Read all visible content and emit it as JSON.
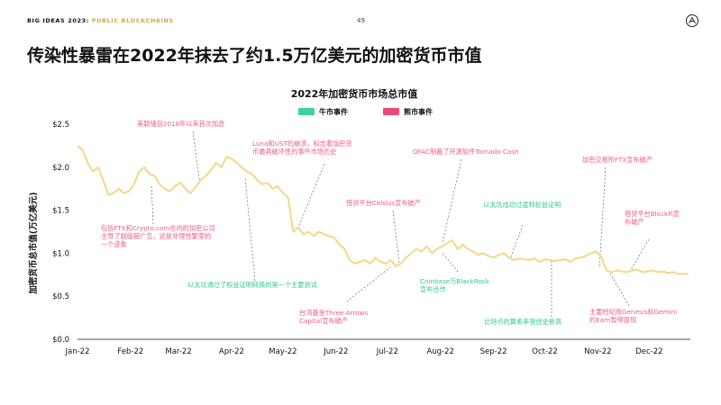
{
  "header": {
    "brand": "BIG IDEAS 2023:",
    "section": "PUBLIC BLOCKCHAINS",
    "page_number": "49"
  },
  "page_title": "传染性暴雷在2022年抹去了约1.5万亿美元的加密货币市值",
  "colors": {
    "line": "#f3d889",
    "bull": "#3ed496",
    "bear": "#ef4a74",
    "annotation": "#f05b82",
    "annotation_teal": "#2fc79b",
    "accent": "#d4a64a"
  },
  "chart_data": {
    "type": "line",
    "title": "2022年加密货币市场总市值",
    "ylabel": "加密货币总市值(万亿美元)",
    "xlabel": "",
    "ylim": [
      0,
      2.5
    ],
    "yticks": [
      "$0.0",
      "$0.5",
      "$1.0",
      "$1.5",
      "$2.0",
      "$2.5"
    ],
    "ytick_values": [
      0,
      0.5,
      1.0,
      1.5,
      2.0,
      2.5
    ],
    "xlim": [
      0,
      358
    ],
    "xticks": [
      {
        "label": "Jan-22",
        "day": 0
      },
      {
        "label": "Feb-22",
        "day": 31
      },
      {
        "label": "Mar-22",
        "day": 59
      },
      {
        "label": "Apr-22",
        "day": 90
      },
      {
        "label": "May-22",
        "day": 120
      },
      {
        "label": "Jun-22",
        "day": 151
      },
      {
        "label": "Jul-22",
        "day": 181
      },
      {
        "label": "Aug-22",
        "day": 212
      },
      {
        "label": "Sep-22",
        "day": 243
      },
      {
        "label": "Oct-22",
        "day": 273
      },
      {
        "label": "Nov-22",
        "day": 304
      },
      {
        "label": "Dec-22",
        "day": 334
      }
    ],
    "legend": [
      {
        "label": "牛市事件",
        "kind": "bull"
      },
      {
        "label": "熊市事件",
        "kind": "bear"
      }
    ],
    "grid": false,
    "series": [
      {
        "x": [
          0,
          3,
          6,
          9,
          12,
          15,
          18,
          21,
          24,
          27,
          30,
          33,
          36,
          39,
          42,
          45,
          48,
          51,
          54,
          57,
          60,
          63,
          66,
          69,
          72,
          75,
          78,
          81,
          84,
          87,
          90,
          93,
          96,
          99,
          102,
          105,
          108,
          111,
          114,
          117,
          120,
          123,
          126,
          129,
          132,
          135,
          138,
          141,
          144,
          147,
          150,
          153,
          156,
          159,
          162,
          165,
          168,
          171,
          174,
          177,
          180,
          183,
          186,
          189,
          192,
          195,
          198,
          201,
          204,
          207,
          210,
          213,
          216,
          219,
          222,
          225,
          228,
          231,
          234,
          237,
          240,
          243,
          246,
          249,
          252,
          255,
          258,
          261,
          264,
          267,
          270,
          273,
          276,
          279,
          282,
          285,
          288,
          291,
          294,
          297,
          300,
          303,
          306,
          309,
          312,
          315,
          318,
          321,
          324,
          327,
          330,
          333,
          336,
          339,
          342,
          345,
          348,
          351,
          354,
          357
        ],
        "y": [
          2.25,
          2.2,
          2.05,
          1.95,
          2.0,
          1.85,
          1.68,
          1.7,
          1.75,
          1.7,
          1.72,
          1.8,
          1.95,
          2.0,
          1.92,
          1.9,
          1.8,
          1.75,
          1.72,
          1.78,
          1.82,
          1.75,
          1.7,
          1.77,
          1.85,
          1.9,
          1.97,
          2.05,
          2.0,
          2.12,
          2.1,
          2.05,
          2.0,
          1.95,
          1.92,
          1.85,
          1.8,
          1.82,
          1.75,
          1.78,
          1.7,
          1.65,
          1.25,
          1.3,
          1.22,
          1.25,
          1.2,
          1.25,
          1.22,
          1.2,
          1.18,
          1.1,
          1.05,
          0.92,
          0.88,
          0.9,
          0.92,
          0.88,
          0.95,
          0.9,
          0.88,
          0.92,
          0.85,
          0.88,
          0.95,
          1.0,
          1.05,
          1.02,
          1.08,
          1.0,
          1.05,
          1.08,
          1.12,
          1.15,
          1.05,
          1.1,
          1.05,
          1.02,
          0.98,
          1.0,
          0.97,
          0.95,
          0.98,
          1.0,
          0.95,
          0.92,
          0.94,
          0.93,
          0.92,
          0.94,
          0.9,
          0.93,
          0.92,
          0.91,
          0.92,
          0.93,
          0.9,
          0.94,
          0.95,
          0.97,
          1.0,
          1.02,
          0.96,
          0.8,
          0.78,
          0.8,
          0.79,
          0.78,
          0.8,
          0.81,
          0.78,
          0.79,
          0.8,
          0.78,
          0.79,
          0.77,
          0.78,
          0.76,
          0.76,
          0.76
        ]
      }
    ],
    "annotations": [
      {
        "text": [
          "美联储自2018年以来首次加息"
        ],
        "kind": "bear",
        "day": 74
      },
      {
        "text": [
          "包括FTX和Crypto.com在内的加密公司",
          "主导了超级碗广告，这是非理性繁荣的",
          "一个迹象"
        ],
        "kind": "bear",
        "day": 44
      },
      {
        "text": [
          "以太坊通过了权益证明转换的第一个主要测试"
        ],
        "kind": "bull",
        "day": 98
      },
      {
        "text": [
          "Luna和UST的崩溃，标志着加密货",
          "币最具破坏性的事件市场历史"
        ],
        "kind": "bear",
        "day": 128
      },
      {
        "text": [
          "台湾基金Three Arrows",
          "Capital宣布破产"
        ],
        "kind": "bear",
        "day": 168
      },
      {
        "text": [
          "借贷平台Celsius宣布破产"
        ],
        "kind": "bear",
        "day": 186
      },
      {
        "text": [
          "OFAC制裁了开源软件Tornado Cash"
        ],
        "kind": "bear",
        "day": 217
      },
      {
        "text": [
          "Coinbase与BlackRock",
          "宣布合作"
        ],
        "kind": "bull",
        "day": 211
      },
      {
        "text": [
          "以太坊成功过渡到权益证明"
        ],
        "kind": "bull",
        "day": 258
      },
      {
        "text": [
          "比特币的算希率登创史新高"
        ],
        "kind": "bull",
        "day": 292
      },
      {
        "text": [
          "加密交易所FTX宣布破产"
        ],
        "kind": "bear",
        "day": 312
      },
      {
        "text": [
          "借贷平台BlockFi宣",
          "布破产"
        ],
        "kind": "bear",
        "day": 332
      },
      {
        "text": [
          "主要经纪商Genesis和Gemini",
          "的Earn暂停提现"
        ],
        "kind": "bear",
        "day": 318
      }
    ]
  }
}
